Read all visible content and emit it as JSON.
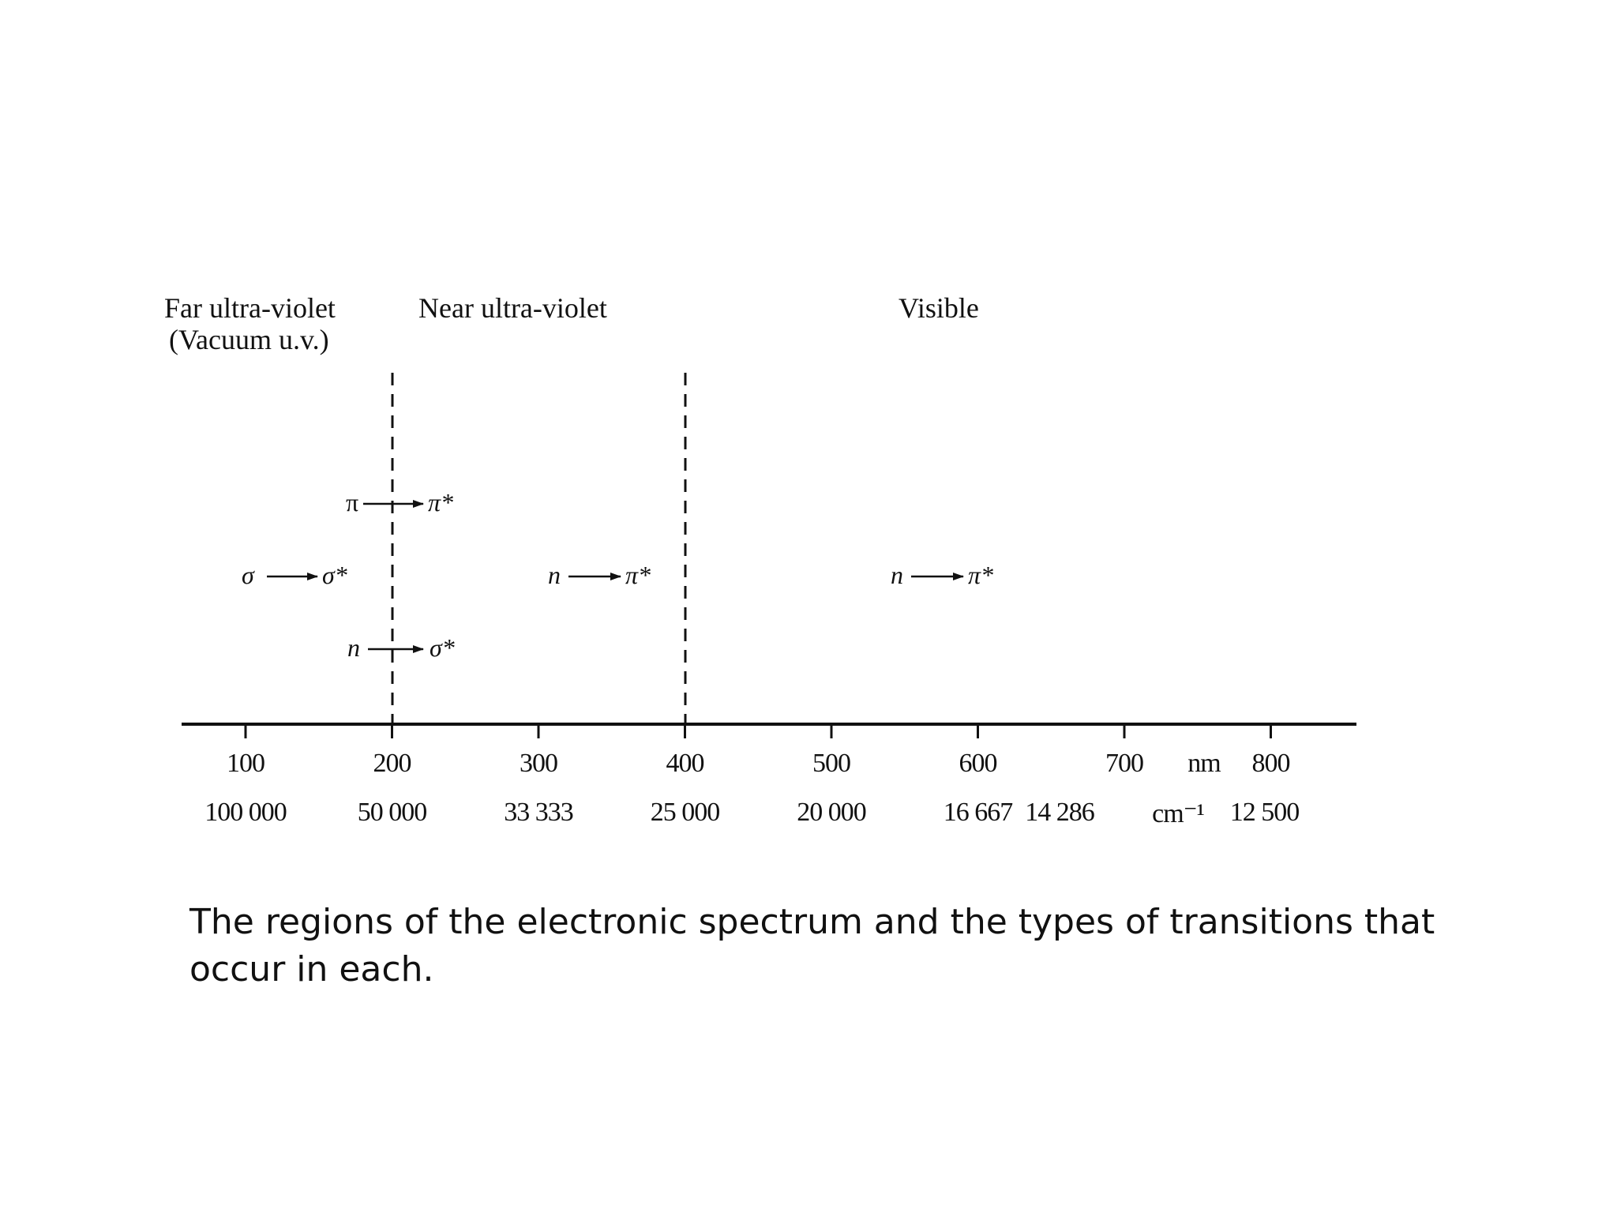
{
  "regions": {
    "far_uv_line1": "Far ultra-violet",
    "far_uv_line2": "(Vacuum u.v.)",
    "near_uv": "Near ultra-violet",
    "visible": "Visible"
  },
  "axis": {
    "nm_ticks": [
      "100",
      "200",
      "300",
      "400",
      "500",
      "600",
      "700",
      "800"
    ],
    "nm_unit": "nm",
    "wavenumber_ticks": [
      "100 000",
      "50 000",
      "33 333",
      "25 000",
      "20 000",
      "16 667",
      "14 286",
      "12 500"
    ],
    "wavenumber_unit": "cm⁻¹"
  },
  "boundaries_nm": [
    200,
    400
  ],
  "transitions": {
    "pi_pi_star": {
      "from": "π",
      "to": "π*"
    },
    "sigma_sigma_star": {
      "from": "σ",
      "to": "σ*"
    },
    "n_pi_star_near_uv": {
      "from": "n",
      "to": "π*"
    },
    "n_pi_star_visible": {
      "from": "n",
      "to": "π*"
    },
    "n_sigma_star": {
      "from": "n",
      "to": "σ*"
    }
  },
  "caption": "The regions of the electronic spectrum and the types of transitions that occur in each."
}
